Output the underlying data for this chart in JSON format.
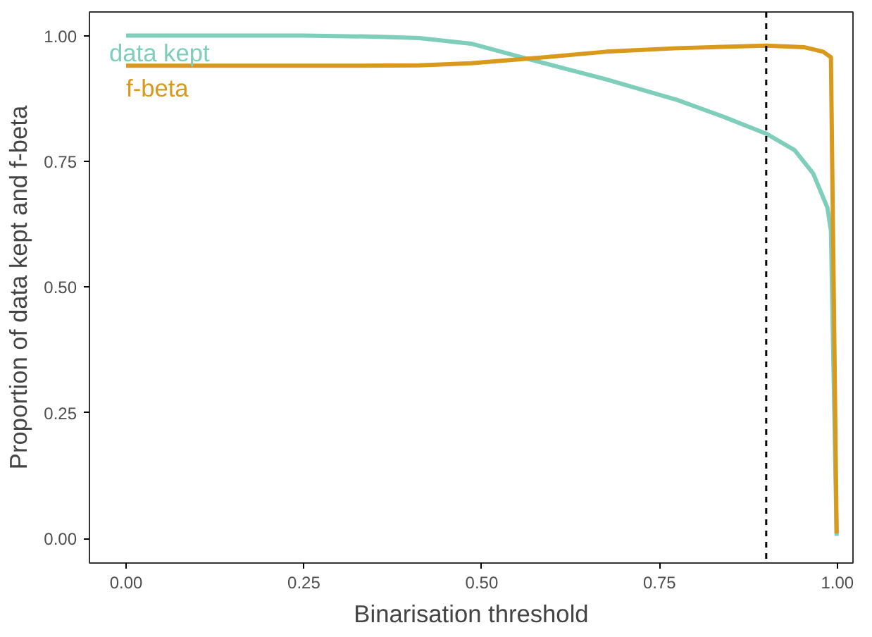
{
  "chart_data": {
    "type": "line",
    "xlabel": "Binarisation threshold",
    "ylabel": "Proportion of data kept and f-beta",
    "series": [
      {
        "name": "data kept",
        "color": "#7fcdbb",
        "x": [
          0.0,
          0.25,
          0.35,
          0.412,
          0.485,
          0.564,
          0.675,
          0.775,
          0.841,
          0.9,
          0.94,
          0.966,
          0.986,
          0.991,
          0.999
        ],
        "values": [
          1.0,
          1.0,
          0.998,
          0.995,
          0.984,
          0.954,
          0.913,
          0.872,
          0.838,
          0.805,
          0.772,
          0.726,
          0.658,
          0.612,
          0.005
        ]
      },
      {
        "name": "f-beta",
        "color": "#d8991c",
        "x": [
          0.0,
          0.3,
          0.412,
          0.485,
          0.564,
          0.675,
          0.775,
          0.9,
          0.953,
          0.98,
          0.991,
          0.999
        ],
        "values": [
          0.94,
          0.94,
          0.941,
          0.945,
          0.954,
          0.968,
          0.975,
          0.98,
          0.977,
          0.968,
          0.957,
          0.01
        ]
      }
    ],
    "xlim": [
      -0.0515,
      1.022
    ],
    "ylim": [
      -0.049,
      1.047
    ],
    "xticks": [
      {
        "value": 0,
        "label": "0.00"
      },
      {
        "value": 0.25,
        "label": "0.25"
      },
      {
        "value": 0.5,
        "label": "0.50"
      },
      {
        "value": 0.75,
        "label": "0.75"
      },
      {
        "value": 1,
        "label": "1.00"
      }
    ],
    "yticks": [
      {
        "value": 0,
        "label": "0.00"
      },
      {
        "value": 0.25,
        "label": "0.25"
      },
      {
        "value": 0.5,
        "label": "0.50"
      },
      {
        "value": 0.75,
        "label": "0.75"
      },
      {
        "value": 1,
        "label": "1.00"
      }
    ],
    "ref_lines": [
      {
        "axis": "x",
        "value": 0.9,
        "color": "#000000",
        "line_style": "dashed"
      }
    ],
    "grid": false,
    "legend": false
  }
}
